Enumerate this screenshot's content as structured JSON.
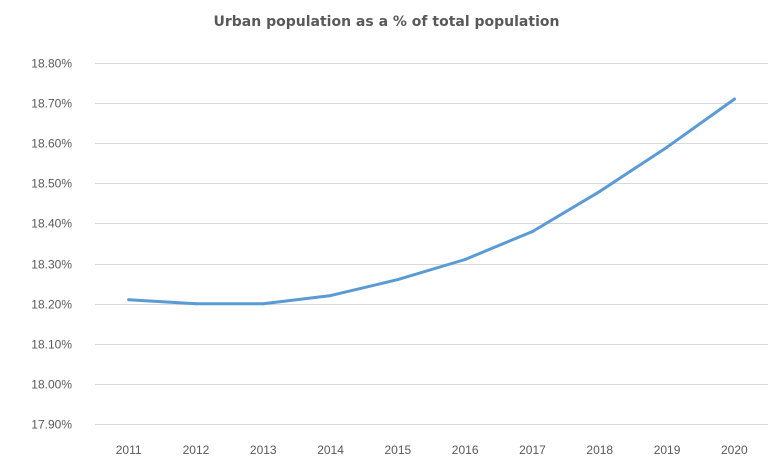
{
  "chart_data": {
    "type": "line",
    "title": "Urban population as a % of total population",
    "xlabel": "",
    "ylabel": "",
    "categories": [
      "2011",
      "2012",
      "2013",
      "2014",
      "2015",
      "2016",
      "2017",
      "2018",
      "2019",
      "2020"
    ],
    "series": [
      {
        "values": [
          18.21,
          18.2,
          18.2,
          18.22,
          18.26,
          18.31,
          18.38,
          18.48,
          18.59,
          18.71
        ]
      }
    ],
    "ylim": [
      17.9,
      18.8
    ],
    "yticks": [
      17.9,
      18.0,
      18.1,
      18.2,
      18.3,
      18.4,
      18.5,
      18.6,
      18.7,
      18.8
    ],
    "ytick_labels": [
      "17.90%",
      "18.00%",
      "18.10%",
      "18.20%",
      "18.30%",
      "18.40%",
      "18.50%",
      "18.60%",
      "18.70%",
      "18.80%"
    ],
    "grid": true,
    "legend": "none",
    "line_color": "#5b9bd5"
  }
}
